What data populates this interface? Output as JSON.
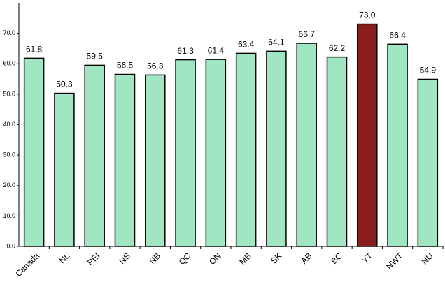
{
  "chart_data": {
    "type": "bar",
    "categories": [
      "Canada",
      "NL",
      "PEI",
      "NS",
      "NB",
      "QC",
      "ON",
      "MB",
      "SK",
      "AB",
      "BC",
      "YT",
      "NWT",
      "NU"
    ],
    "values": [
      61.8,
      50.3,
      59.5,
      56.5,
      56.3,
      61.3,
      61.4,
      63.4,
      64.1,
      66.7,
      62.2,
      73.0,
      66.4,
      54.9
    ],
    "value_labels": [
      "61.8",
      "50.3",
      "59.5",
      "56.5",
      "56.3",
      "61.3",
      "61.4",
      "63.4",
      "64.1",
      "66.7",
      "62.2",
      "73.0",
      "66.4",
      "54.9"
    ],
    "colors": [
      "#a0e6c2",
      "#a0e6c2",
      "#a0e6c2",
      "#a0e6c2",
      "#a0e6c2",
      "#a0e6c2",
      "#a0e6c2",
      "#a0e6c2",
      "#a0e6c2",
      "#a0e6c2",
      "#a0e6c2",
      "#8b1c1c",
      "#a0e6c2",
      "#a0e6c2"
    ],
    "ylim": [
      0,
      80
    ],
    "yticks": [
      {
        "value": 0,
        "label": "0.0"
      },
      {
        "value": 10,
        "label": "10.0"
      },
      {
        "value": 20,
        "label": "20.0"
      },
      {
        "value": 30,
        "label": "30.0"
      },
      {
        "value": 40,
        "label": "40.0"
      },
      {
        "value": 50,
        "label": "50.0"
      },
      {
        "value": 60,
        "label": "60.0"
      },
      {
        "value": 70,
        "label": "70.0"
      }
    ],
    "grid": false
  }
}
